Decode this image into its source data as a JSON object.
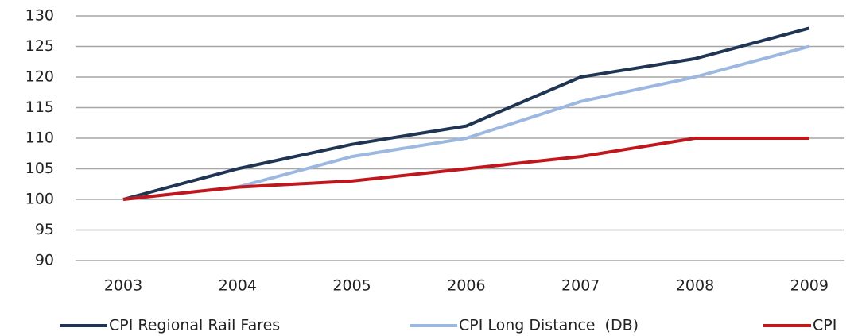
{
  "chart_data": {
    "type": "line",
    "categories": [
      "2003",
      "2004",
      "2005",
      "2006",
      "2007",
      "2008",
      "2009"
    ],
    "series": [
      {
        "name": "CPI Regional Rail Fares",
        "color": "#1f3553",
        "values": [
          100,
          105,
          109,
          112,
          120,
          123,
          128
        ]
      },
      {
        "name": "CPI Long Distance  (DB)",
        "color": "#9db8e0",
        "values": [
          100,
          102,
          107,
          110,
          116,
          120,
          125
        ]
      },
      {
        "name": "CPI",
        "color": "#c0171d",
        "values": [
          100,
          102,
          103,
          105,
          107,
          110,
          110
        ]
      }
    ],
    "ylim": [
      90,
      130
    ],
    "yticks": [
      90,
      95,
      100,
      105,
      110,
      115,
      120,
      125,
      130
    ],
    "grid": true,
    "legend": "bottom"
  }
}
